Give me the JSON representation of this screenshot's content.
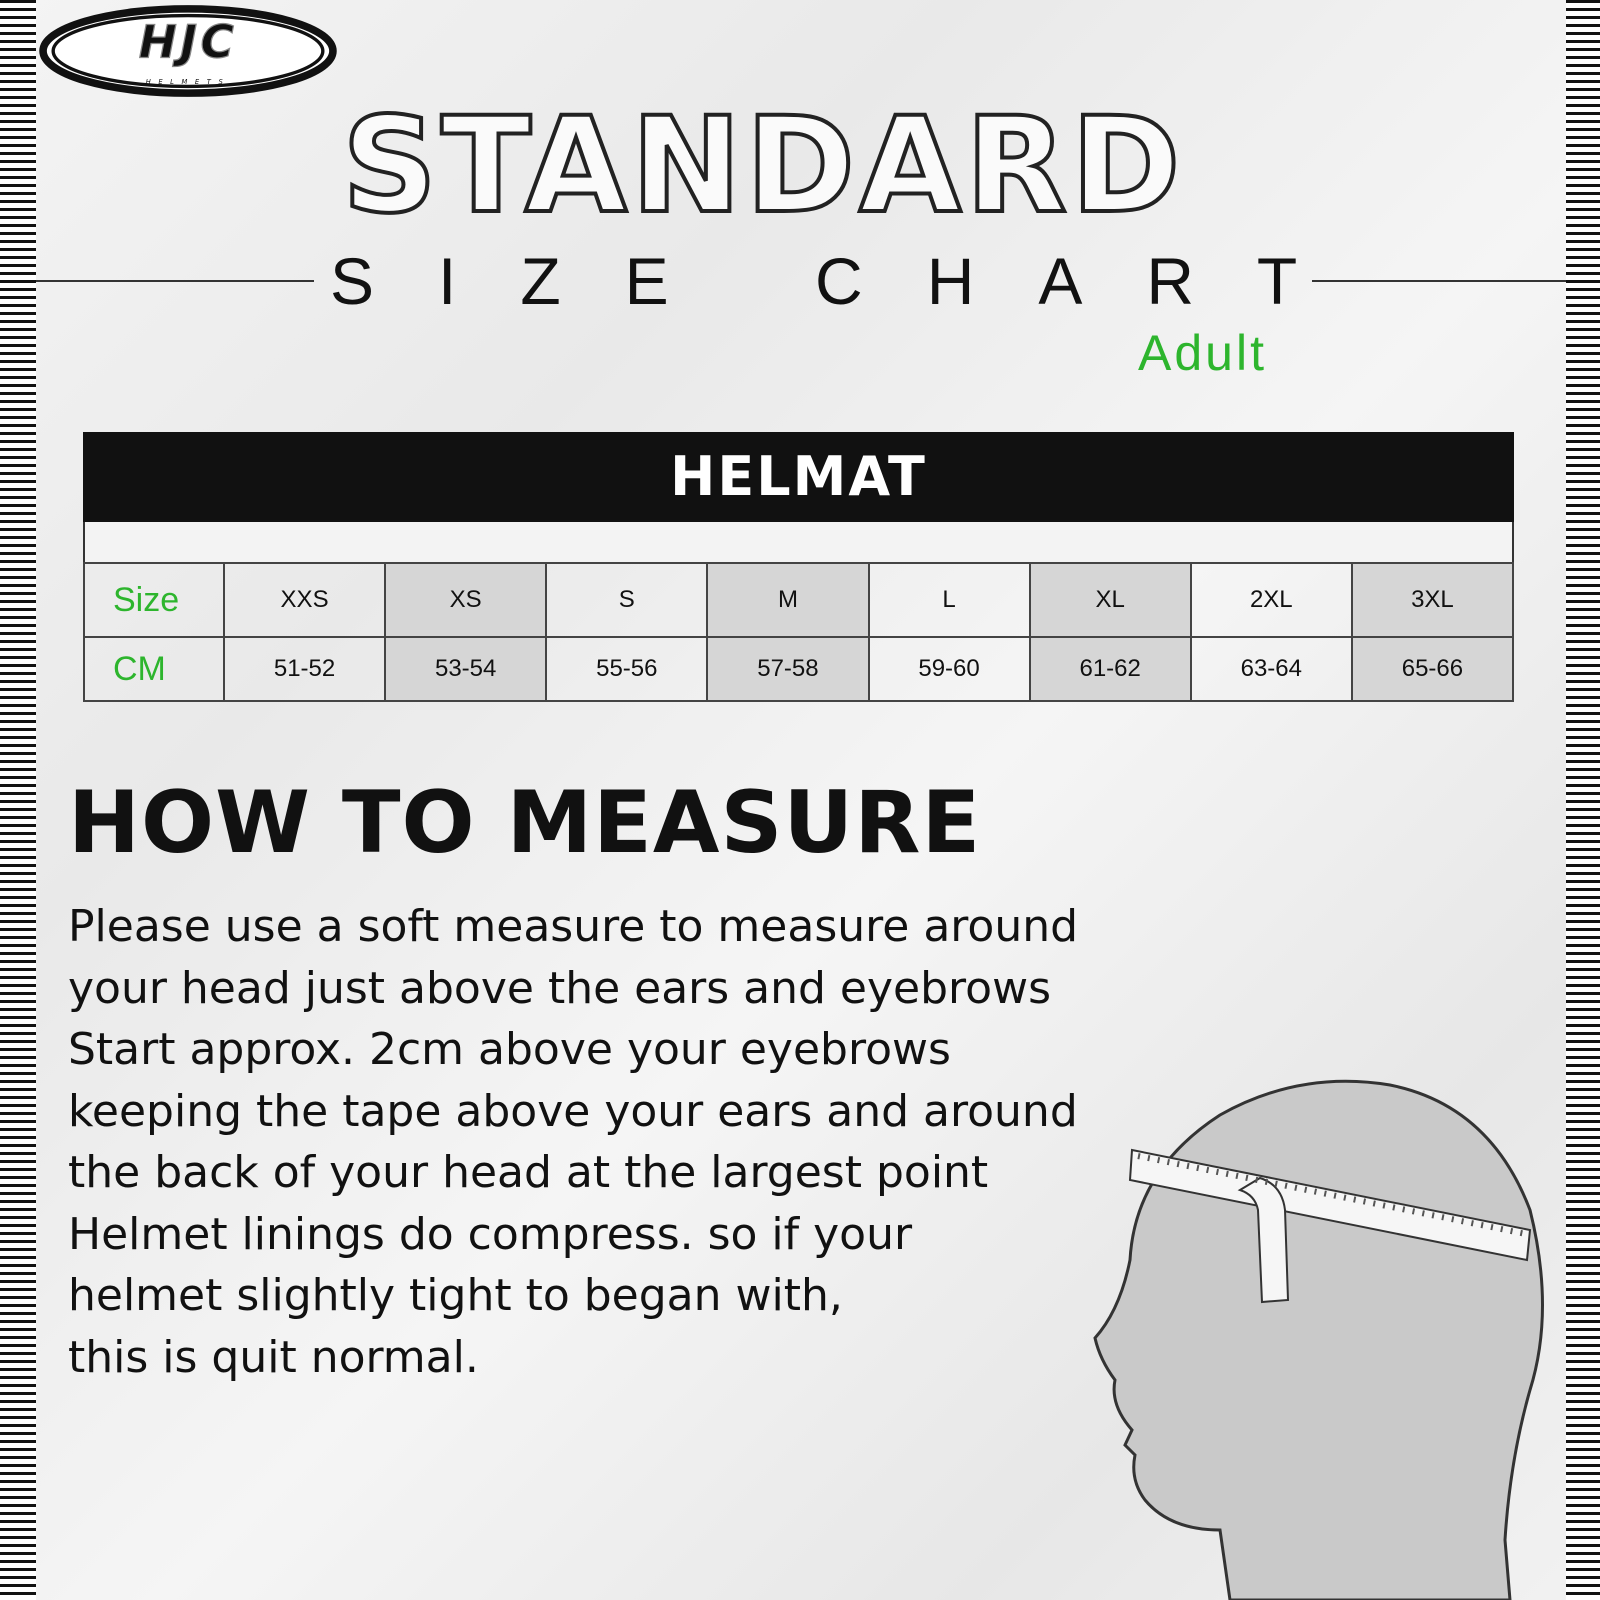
{
  "brand": {
    "logo_text": "HJC",
    "logo_subtext": "HELMETS"
  },
  "title": "STANDARD",
  "subtitle": "SIZE CHART",
  "audience": "Adult",
  "accent_color": "#2db52d",
  "table": {
    "header": "HELMAT",
    "row_labels": [
      "Size",
      "CM"
    ],
    "sizes": [
      "XXS",
      "XS",
      "S",
      "M",
      "L",
      "XL",
      "2XL",
      "3XL"
    ],
    "cm": [
      "51-52",
      "53-54",
      "55-56",
      "57-58",
      "59-60",
      "61-62",
      "63-64",
      "65-66"
    ]
  },
  "how_to": {
    "heading": "HOW TO MEASURE",
    "lines": [
      "Please use a soft measure to measure around",
      "your head just above the ears and eyebrows",
      "Start approx. 2cm above your eyebrows",
      "keeping the tape above your ears and around",
      "the back of your head at the largest point",
      "Helmet linings do compress. so if your",
      "helmet slightly tight to began with,",
      "this is quit normal."
    ]
  },
  "illustration": "head-with-measuring-tape"
}
